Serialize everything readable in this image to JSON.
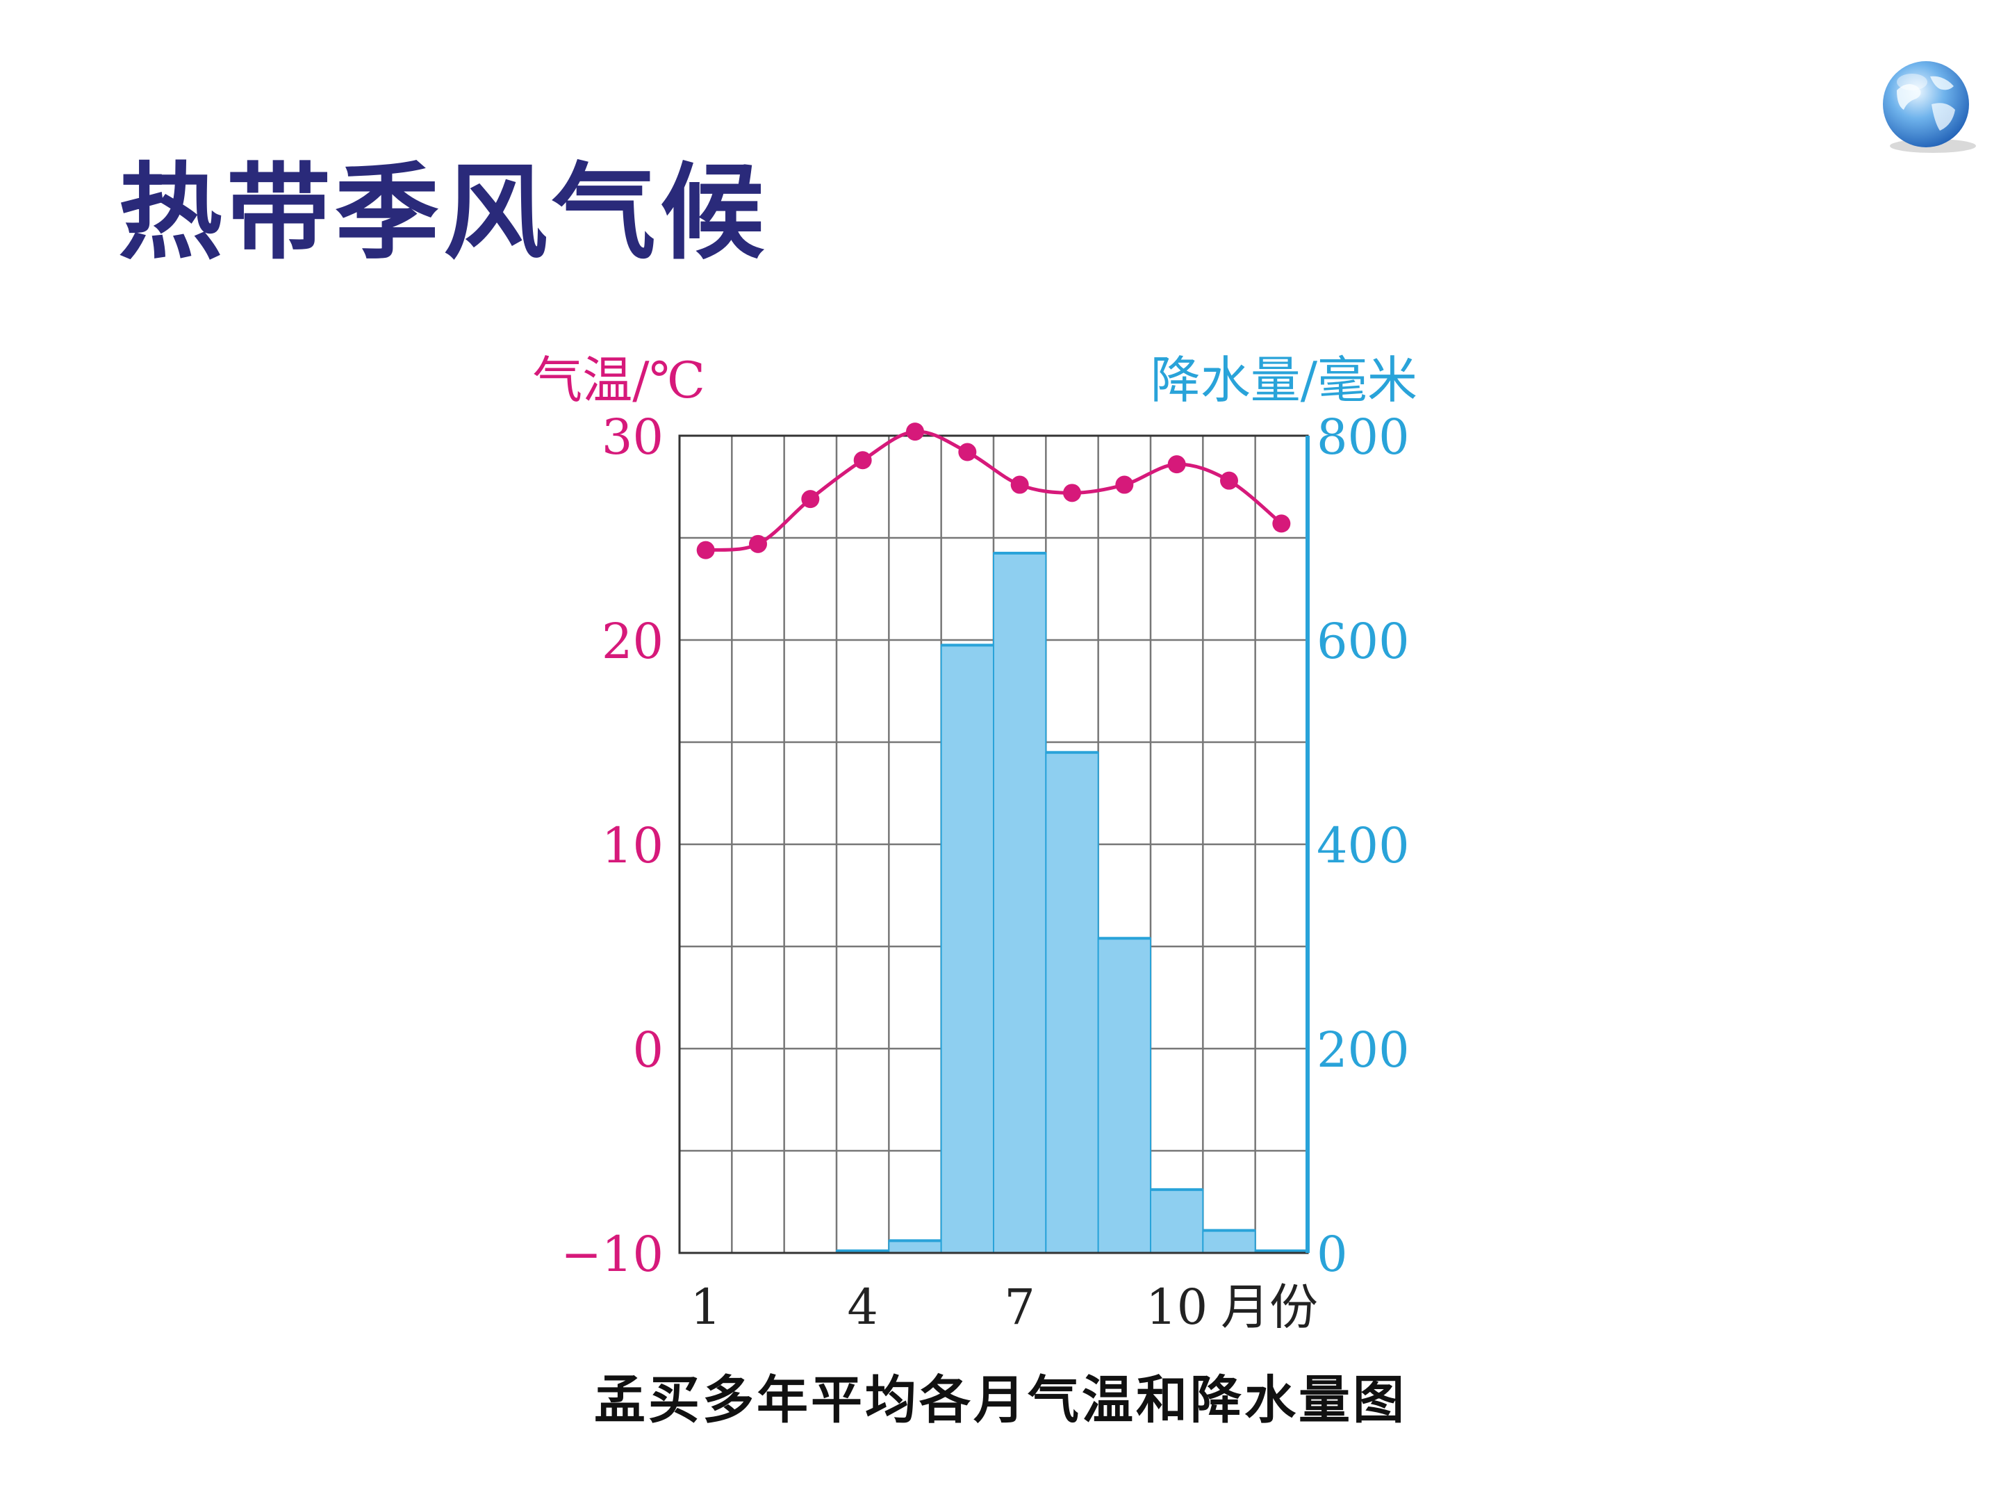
{
  "slide": {
    "title": "热带季风气候"
  },
  "colors": {
    "title": "#2a2a7a",
    "temperature": "#d6197a",
    "precipitation": "#29a3d9",
    "bar_fill": "#8ecff0",
    "grid": "#777777",
    "caption": "#111111"
  },
  "icons": {
    "globe": "globe-icon"
  },
  "chart_data": {
    "type": "bar-line-combo",
    "caption": "孟买多年平均各月气温和降水量图",
    "months": [
      1,
      2,
      3,
      4,
      5,
      6,
      7,
      8,
      9,
      10,
      11,
      12
    ],
    "x_tick_labels": [
      {
        "month": 1,
        "label": "1"
      },
      {
        "month": 4,
        "label": "4"
      },
      {
        "month": 7,
        "label": "7"
      },
      {
        "month": 10,
        "label": "10"
      }
    ],
    "x_unit_label": "月份",
    "left_axis": {
      "label": "气温/℃",
      "range": [
        -10,
        30
      ],
      "ticks": [
        {
          "value": 30,
          "label": "30"
        },
        {
          "value": 20,
          "label": "20"
        },
        {
          "value": 10,
          "label": "10"
        },
        {
          "value": 0,
          "label": "0"
        },
        {
          "value": -10,
          "label": "−10"
        }
      ]
    },
    "right_axis": {
      "label": "降水量/毫米",
      "range": [
        0,
        800
      ],
      "ticks": [
        {
          "value": 800,
          "label": "800"
        },
        {
          "value": 600,
          "label": "600"
        },
        {
          "value": 400,
          "label": "400"
        },
        {
          "value": 200,
          "label": "200"
        },
        {
          "value": 0,
          "label": "0"
        }
      ]
    },
    "grid": true,
    "series": [
      {
        "kind": "bar",
        "axis": "right",
        "values": [
          0,
          0,
          0,
          2,
          12,
          595,
          685,
          490,
          308,
          62,
          22,
          2
        ]
      },
      {
        "kind": "line",
        "axis": "left",
        "values": [
          24.4,
          24.7,
          26.9,
          28.8,
          30.2,
          29.2,
          27.6,
          27.2,
          27.6,
          28.6,
          27.8,
          25.7
        ]
      }
    ]
  }
}
